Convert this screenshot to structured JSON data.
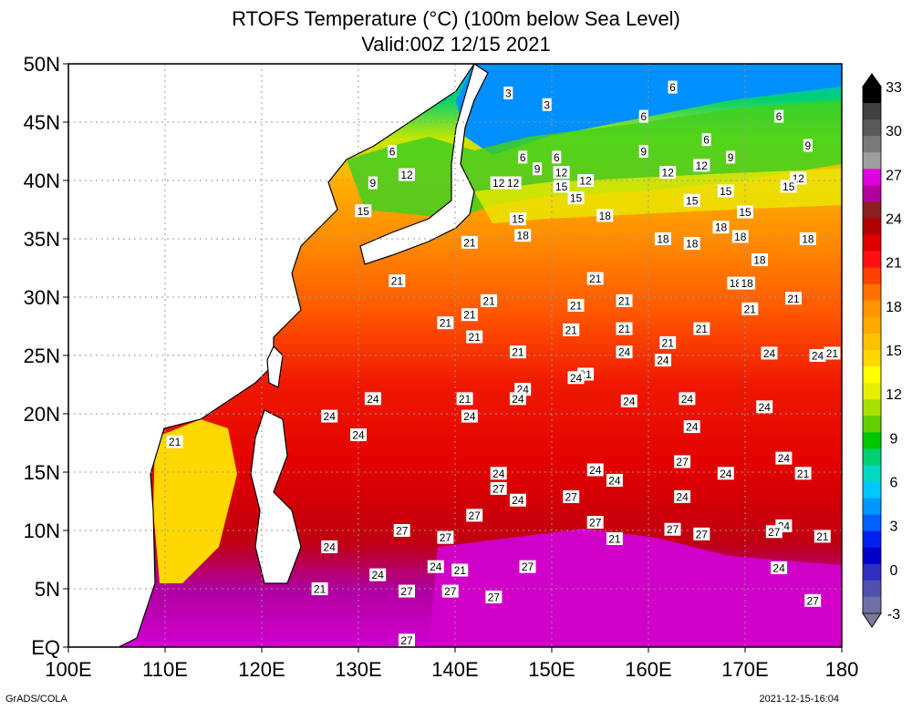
{
  "title": {
    "line1": "RTOFS Temperature (°C) (100m below Sea Level)",
    "line2": "Valid:00Z 12/15 2021"
  },
  "map": {
    "lon_range": [
      100,
      180
    ],
    "lat_range": [
      0,
      50
    ],
    "lat_ticks": [
      {
        "lat": 50,
        "label": "50N"
      },
      {
        "lat": 45,
        "label": "45N"
      },
      {
        "lat": 40,
        "label": "40N"
      },
      {
        "lat": 35,
        "label": "35N"
      },
      {
        "lat": 30,
        "label": "30N"
      },
      {
        "lat": 25,
        "label": "25N"
      },
      {
        "lat": 20,
        "label": "20N"
      },
      {
        "lat": 15,
        "label": "15N"
      },
      {
        "lat": 10,
        "label": "10N"
      },
      {
        "lat": 5,
        "label": "5N"
      },
      {
        "lat": 0,
        "label": "EQ"
      }
    ],
    "lon_ticks": [
      {
        "lon": 100,
        "label": "100E"
      },
      {
        "lon": 110,
        "label": "110E"
      },
      {
        "lon": 120,
        "label": "120E"
      },
      {
        "lon": 130,
        "label": "130E"
      },
      {
        "lon": 140,
        "label": "140E"
      },
      {
        "lon": 150,
        "label": "150E"
      },
      {
        "lon": 160,
        "label": "160E"
      },
      {
        "lon": 170,
        "label": "170E"
      },
      {
        "lon": 180,
        "label": "180"
      }
    ],
    "grid": "dotted",
    "contour_labels": [
      {
        "lon": 145.5,
        "lat": 47.5,
        "text": "3"
      },
      {
        "lon": 149.5,
        "lat": 46.5,
        "text": "3"
      },
      {
        "lon": 162.5,
        "lat": 48,
        "text": "6"
      },
      {
        "lon": 159.5,
        "lat": 45.5,
        "text": "6"
      },
      {
        "lon": 173.5,
        "lat": 45.5,
        "text": "6"
      },
      {
        "lon": 166,
        "lat": 43.5,
        "text": "6"
      },
      {
        "lon": 133.5,
        "lat": 42.5,
        "text": "6"
      },
      {
        "lon": 147,
        "lat": 42,
        "text": "6"
      },
      {
        "lon": 150.5,
        "lat": 42,
        "text": "6"
      },
      {
        "lon": 159.5,
        "lat": 42.5,
        "text": "9"
      },
      {
        "lon": 168.5,
        "lat": 42,
        "text": "9"
      },
      {
        "lon": 176.5,
        "lat": 43,
        "text": "9"
      },
      {
        "lon": 148.5,
        "lat": 41,
        "text": "9"
      },
      {
        "lon": 131.5,
        "lat": 39.8,
        "text": "9"
      },
      {
        "lon": 165.5,
        "lat": 41.3,
        "text": "12"
      },
      {
        "lon": 151,
        "lat": 40.7,
        "text": "12"
      },
      {
        "lon": 153.5,
        "lat": 40,
        "text": "12"
      },
      {
        "lon": 162,
        "lat": 40.7,
        "text": "12"
      },
      {
        "lon": 175.5,
        "lat": 40.2,
        "text": "12"
      },
      {
        "lon": 135,
        "lat": 40.5,
        "text": "12"
      },
      {
        "lon": 144.5,
        "lat": 39.8,
        "text": "12"
      },
      {
        "lon": 146,
        "lat": 39.8,
        "text": "12"
      },
      {
        "lon": 151,
        "lat": 39.5,
        "text": "15"
      },
      {
        "lon": 152.5,
        "lat": 38.5,
        "text": "15"
      },
      {
        "lon": 164.5,
        "lat": 38.3,
        "text": "15"
      },
      {
        "lon": 168,
        "lat": 39.1,
        "text": "15"
      },
      {
        "lon": 174.5,
        "lat": 39.5,
        "text": "15"
      },
      {
        "lon": 130.5,
        "lat": 37.4,
        "text": "15"
      },
      {
        "lon": 146.5,
        "lat": 36.7,
        "text": "15"
      },
      {
        "lon": 170,
        "lat": 37.3,
        "text": "15"
      },
      {
        "lon": 155.5,
        "lat": 37,
        "text": "18"
      },
      {
        "lon": 167.5,
        "lat": 36,
        "text": "18"
      },
      {
        "lon": 147,
        "lat": 35.3,
        "text": "18"
      },
      {
        "lon": 161.5,
        "lat": 35,
        "text": "18"
      },
      {
        "lon": 164.5,
        "lat": 34.6,
        "text": "18"
      },
      {
        "lon": 169.5,
        "lat": 35.2,
        "text": "18"
      },
      {
        "lon": 176.5,
        "lat": 35,
        "text": "18"
      },
      {
        "lon": 171.5,
        "lat": 33.2,
        "text": "18"
      },
      {
        "lon": 169,
        "lat": 31.2,
        "text": "18"
      },
      {
        "lon": 170.2,
        "lat": 31.2,
        "text": "18"
      },
      {
        "lon": 141.5,
        "lat": 34.7,
        "text": "21"
      },
      {
        "lon": 134,
        "lat": 31.4,
        "text": "21"
      },
      {
        "lon": 154.5,
        "lat": 31.6,
        "text": "21"
      },
      {
        "lon": 143.5,
        "lat": 29.7,
        "text": "21"
      },
      {
        "lon": 152.5,
        "lat": 29.3,
        "text": "21"
      },
      {
        "lon": 157.5,
        "lat": 29.7,
        "text": "21"
      },
      {
        "lon": 141.5,
        "lat": 28.5,
        "text": "21"
      },
      {
        "lon": 139,
        "lat": 27.8,
        "text": "21"
      },
      {
        "lon": 152,
        "lat": 27.2,
        "text": "21"
      },
      {
        "lon": 157.5,
        "lat": 27.3,
        "text": "21"
      },
      {
        "lon": 165.5,
        "lat": 27.3,
        "text": "21"
      },
      {
        "lon": 170.5,
        "lat": 29,
        "text": "21"
      },
      {
        "lon": 175,
        "lat": 29.9,
        "text": "21"
      },
      {
        "lon": 142,
        "lat": 26.6,
        "text": "21"
      },
      {
        "lon": 162,
        "lat": 26.1,
        "text": "21"
      },
      {
        "lon": 146.5,
        "lat": 25.3,
        "text": "21"
      },
      {
        "lon": 153.5,
        "lat": 23.4,
        "text": "21"
      },
      {
        "lon": 179,
        "lat": 25.2,
        "text": "21"
      },
      {
        "lon": 141,
        "lat": 21.3,
        "text": "21"
      },
      {
        "lon": 111,
        "lat": 17.6,
        "text": "21"
      },
      {
        "lon": 176,
        "lat": 14.9,
        "text": "21"
      },
      {
        "lon": 156.5,
        "lat": 9.3,
        "text": "21"
      },
      {
        "lon": 178,
        "lat": 9.5,
        "text": "21"
      },
      {
        "lon": 140.5,
        "lat": 6.6,
        "text": "21"
      },
      {
        "lon": 126,
        "lat": 5,
        "text": "21"
      },
      {
        "lon": 157.5,
        "lat": 25.3,
        "text": "24"
      },
      {
        "lon": 161.5,
        "lat": 24.6,
        "text": "24"
      },
      {
        "lon": 172.5,
        "lat": 25.2,
        "text": "24"
      },
      {
        "lon": 177.5,
        "lat": 25,
        "text": "24"
      },
      {
        "lon": 152.5,
        "lat": 23.1,
        "text": "24"
      },
      {
        "lon": 147,
        "lat": 22.1,
        "text": "24"
      },
      {
        "lon": 131.5,
        "lat": 21.3,
        "text": "24"
      },
      {
        "lon": 146.5,
        "lat": 21.3,
        "text": "24"
      },
      {
        "lon": 158,
        "lat": 21.1,
        "text": "24"
      },
      {
        "lon": 164,
        "lat": 21.3,
        "text": "24"
      },
      {
        "lon": 172,
        "lat": 20.6,
        "text": "24"
      },
      {
        "lon": 127,
        "lat": 19.8,
        "text": "24"
      },
      {
        "lon": 141.5,
        "lat": 19.8,
        "text": "24"
      },
      {
        "lon": 130,
        "lat": 18.2,
        "text": "24"
      },
      {
        "lon": 164.5,
        "lat": 18.9,
        "text": "24"
      },
      {
        "lon": 174,
        "lat": 16.2,
        "text": "24"
      },
      {
        "lon": 154.5,
        "lat": 15.2,
        "text": "24"
      },
      {
        "lon": 144.5,
        "lat": 14.9,
        "text": "24"
      },
      {
        "lon": 156.5,
        "lat": 14.3,
        "text": "24"
      },
      {
        "lon": 168,
        "lat": 14.9,
        "text": "24"
      },
      {
        "lon": 163.5,
        "lat": 12.9,
        "text": "24"
      },
      {
        "lon": 146.5,
        "lat": 12.6,
        "text": "24"
      },
      {
        "lon": 174,
        "lat": 10.4,
        "text": "24"
      },
      {
        "lon": 127,
        "lat": 8.6,
        "text": "24"
      },
      {
        "lon": 138,
        "lat": 6.9,
        "text": "24"
      },
      {
        "lon": 132,
        "lat": 6.2,
        "text": "24"
      },
      {
        "lon": 173.5,
        "lat": 6.8,
        "text": "24"
      },
      {
        "lon": 163.5,
        "lat": 15.9,
        "text": "27"
      },
      {
        "lon": 144.5,
        "lat": 13.6,
        "text": "27"
      },
      {
        "lon": 152,
        "lat": 12.9,
        "text": "27"
      },
      {
        "lon": 142,
        "lat": 11.3,
        "text": "27"
      },
      {
        "lon": 154.5,
        "lat": 10.7,
        "text": "27"
      },
      {
        "lon": 134.5,
        "lat": 10,
        "text": "27"
      },
      {
        "lon": 162.5,
        "lat": 10.1,
        "text": "27"
      },
      {
        "lon": 139,
        "lat": 9.4,
        "text": "27"
      },
      {
        "lon": 165.5,
        "lat": 9.7,
        "text": "27"
      },
      {
        "lon": 173,
        "lat": 9.9,
        "text": "27"
      },
      {
        "lon": 147.5,
        "lat": 6.9,
        "text": "27"
      },
      {
        "lon": 135,
        "lat": 4.8,
        "text": "27"
      },
      {
        "lon": 139.5,
        "lat": 4.8,
        "text": "27"
      },
      {
        "lon": 144,
        "lat": 4.3,
        "text": "27"
      },
      {
        "lon": 177,
        "lat": 4,
        "text": "27"
      },
      {
        "lon": 135,
        "lat": 0.6,
        "text": "27"
      }
    ]
  },
  "colorbar": {
    "labels": [
      "33",
      "30",
      "27",
      "24",
      "21",
      "18",
      "15",
      "12",
      "9",
      "6",
      "3",
      "0",
      "-3"
    ],
    "colors": [
      "#000000",
      "#404040",
      "#5a5a5a",
      "#7a7a7a",
      "#9e9e9e",
      "#e000e0",
      "#b000a0",
      "#8b2020",
      "#b40000",
      "#e00000",
      "#ff1010",
      "#ff4000",
      "#ff7000",
      "#ff9400",
      "#ffa800",
      "#ffc000",
      "#ffd800",
      "#ffff00",
      "#e4f000",
      "#a8e000",
      "#60d000",
      "#00c800",
      "#00d070",
      "#00d8c0",
      "#00c8ff",
      "#0098ff",
      "#0060ff",
      "#0020f0",
      "#0000c8",
      "#3030c0",
      "#5050b0",
      "#7070a8"
    ]
  },
  "footer": {
    "left": "GrADS/COLA",
    "right": "2021-12-15-16:04"
  }
}
